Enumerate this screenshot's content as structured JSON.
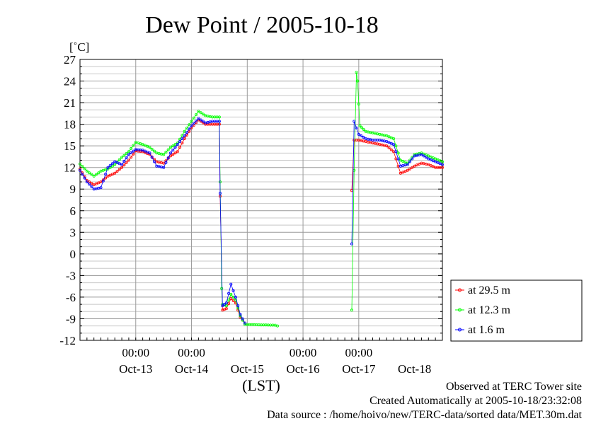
{
  "chart_data": {
    "type": "line",
    "title": "Dew Point / 2005-10-18",
    "ylabel": "[˚C]",
    "xlabel": "(LST)",
    "ylim": [
      -12,
      27
    ],
    "yticks": [
      27,
      24,
      21,
      18,
      15,
      12,
      9,
      6,
      3,
      0,
      -3,
      -6,
      -9,
      -12
    ],
    "x_range_days": [
      "2005-10-12T12:00",
      "2005-10-19T00:00"
    ],
    "time_tick_labels": [
      {
        "at": "2005-10-13T12:00",
        "label": "00:00"
      },
      {
        "at": "2005-10-14T12:00",
        "label": "00:00"
      },
      {
        "at": "2005-10-16T12:00",
        "label": "00:00"
      },
      {
        "at": "2005-10-17T12:00",
        "label": "00:00"
      }
    ],
    "date_tick_labels": [
      {
        "at": "2005-10-13T12:00",
        "label": "Oct-13"
      },
      {
        "at": "2005-10-14T12:00",
        "label": "Oct-14"
      },
      {
        "at": "2005-10-15T12:00",
        "label": "Oct-15"
      },
      {
        "at": "2005-10-16T12:00",
        "label": "Oct-16"
      },
      {
        "at": "2005-10-17T12:00",
        "label": "Oct-17"
      },
      {
        "at": "2005-10-18T12:00",
        "label": "Oct-18"
      }
    ],
    "grid": true,
    "legend_position": "right",
    "series": [
      {
        "name": "at 29.5 m",
        "color": "#ff0000",
        "points": [
          [
            "2005-10-12T12:00",
            11.8
          ],
          [
            "2005-10-12T15:00",
            10.2
          ],
          [
            "2005-10-12T18:00",
            9.6
          ],
          [
            "2005-10-12T21:00",
            10.0
          ],
          [
            "2005-10-13T00:00",
            10.8
          ],
          [
            "2005-10-13T03:00",
            11.2
          ],
          [
            "2005-10-13T06:00",
            12.0
          ],
          [
            "2005-10-13T09:00",
            13.0
          ],
          [
            "2005-10-13T12:00",
            14.3
          ],
          [
            "2005-10-13T15:00",
            14.2
          ],
          [
            "2005-10-13T18:00",
            13.8
          ],
          [
            "2005-10-13T21:00",
            12.8
          ],
          [
            "2005-10-14T00:00",
            12.6
          ],
          [
            "2005-10-14T03:00",
            13.6
          ],
          [
            "2005-10-14T06:00",
            14.2
          ],
          [
            "2005-10-14T09:00",
            16.0
          ],
          [
            "2005-10-14T12:00",
            17.5
          ],
          [
            "2005-10-14T15:00",
            18.6
          ],
          [
            "2005-10-14T18:00",
            18.0
          ],
          [
            "2005-10-14T21:00",
            18.0
          ],
          [
            "2005-10-15T00:00",
            18.0
          ],
          [
            "2005-10-15T00:20",
            8.0
          ],
          [
            "2005-10-15T01:20",
            -7.8
          ],
          [
            "2005-10-15T03:00",
            -7.6
          ],
          [
            "2005-10-15T05:00",
            -6.2
          ],
          [
            "2005-10-15T07:00",
            -6.8
          ],
          [
            "2005-10-15T09:00",
            -8.8
          ],
          [
            "2005-10-15T11:00",
            -9.6
          ]
        ],
        "points_b": [
          [
            "2005-10-17T09:00",
            8.8
          ],
          [
            "2005-10-17T10:00",
            15.8
          ],
          [
            "2005-10-17T12:00",
            15.8
          ],
          [
            "2005-10-17T15:00",
            15.6
          ],
          [
            "2005-10-17T18:00",
            15.4
          ],
          [
            "2005-10-17T21:00",
            15.2
          ],
          [
            "2005-10-18T00:00",
            15.0
          ],
          [
            "2005-10-18T03:00",
            14.2
          ],
          [
            "2005-10-18T06:00",
            11.2
          ],
          [
            "2005-10-18T09:00",
            11.6
          ],
          [
            "2005-10-18T12:00",
            12.2
          ],
          [
            "2005-10-18T15:00",
            12.6
          ],
          [
            "2005-10-18T18:00",
            12.4
          ],
          [
            "2005-10-18T21:00",
            12.0
          ],
          [
            "2005-10-19T00:00",
            12.0
          ]
        ]
      },
      {
        "name": "at 12.3 m",
        "color": "#00ff00",
        "points": [
          [
            "2005-10-12T12:00",
            12.5
          ],
          [
            "2005-10-12T15:00",
            11.5
          ],
          [
            "2005-10-12T18:00",
            10.8
          ],
          [
            "2005-10-12T21:00",
            11.5
          ],
          [
            "2005-10-13T00:00",
            11.8
          ],
          [
            "2005-10-13T03:00",
            12.4
          ],
          [
            "2005-10-13T06:00",
            13.4
          ],
          [
            "2005-10-13T09:00",
            14.2
          ],
          [
            "2005-10-13T12:00",
            15.5
          ],
          [
            "2005-10-13T15:00",
            15.2
          ],
          [
            "2005-10-13T18:00",
            14.8
          ],
          [
            "2005-10-13T21:00",
            14.0
          ],
          [
            "2005-10-14T00:00",
            13.8
          ],
          [
            "2005-10-14T03:00",
            14.8
          ],
          [
            "2005-10-14T06:00",
            15.4
          ],
          [
            "2005-10-14T09:00",
            17.0
          ],
          [
            "2005-10-14T12:00",
            18.4
          ],
          [
            "2005-10-14T15:00",
            19.8
          ],
          [
            "2005-10-14T18:00",
            19.2
          ],
          [
            "2005-10-14T21:00",
            19.0
          ],
          [
            "2005-10-15T00:00",
            19.0
          ],
          [
            "2005-10-15T00:20",
            10.0
          ],
          [
            "2005-10-15T01:00",
            -4.8
          ],
          [
            "2005-10-15T01:20",
            -7.0
          ],
          [
            "2005-10-15T03:00",
            -7.2
          ],
          [
            "2005-10-15T05:00",
            -5.6
          ],
          [
            "2005-10-15T07:00",
            -6.4
          ],
          [
            "2005-10-15T09:00",
            -8.6
          ],
          [
            "2005-10-15T11:00",
            -9.8
          ],
          [
            "2005-10-16T00:00",
            -9.9
          ],
          [
            "2005-10-16T01:00",
            -10.0
          ]
        ],
        "points_b": [
          [
            "2005-10-17T09:00",
            -7.8
          ],
          [
            "2005-10-17T10:00",
            11.6
          ],
          [
            "2005-10-17T11:00",
            25.2
          ],
          [
            "2005-10-17T11:30",
            24.0
          ],
          [
            "2005-10-17T12:00",
            20.8
          ],
          [
            "2005-10-17T12:30",
            17.8
          ],
          [
            "2005-10-17T15:00",
            17.0
          ],
          [
            "2005-10-17T18:00",
            16.8
          ],
          [
            "2005-10-17T21:00",
            16.6
          ],
          [
            "2005-10-18T00:00",
            16.4
          ],
          [
            "2005-10-18T03:00",
            16.0
          ],
          [
            "2005-10-18T06:00",
            13.0
          ],
          [
            "2005-10-18T09:00",
            12.6
          ],
          [
            "2005-10-18T12:00",
            13.8
          ],
          [
            "2005-10-18T15:00",
            14.0
          ],
          [
            "2005-10-18T18:00",
            13.6
          ],
          [
            "2005-10-18T21:00",
            13.2
          ],
          [
            "2005-10-19T00:00",
            12.8
          ]
        ]
      },
      {
        "name": "at 1.6 m",
        "color": "#0000ff",
        "points": [
          [
            "2005-10-12T12:00",
            11.6
          ],
          [
            "2005-10-12T15:00",
            10.0
          ],
          [
            "2005-10-12T18:00",
            9.0
          ],
          [
            "2005-10-12T21:00",
            9.2
          ],
          [
            "2005-10-13T00:00",
            12.0
          ],
          [
            "2005-10-13T03:00",
            12.8
          ],
          [
            "2005-10-13T06:00",
            12.4
          ],
          [
            "2005-10-13T09:00",
            13.8
          ],
          [
            "2005-10-13T12:00",
            14.5
          ],
          [
            "2005-10-13T15:00",
            14.4
          ],
          [
            "2005-10-13T18:00",
            14.0
          ],
          [
            "2005-10-13T21:00",
            12.2
          ],
          [
            "2005-10-14T00:00",
            12.0
          ],
          [
            "2005-10-14T03:00",
            14.0
          ],
          [
            "2005-10-14T06:00",
            15.2
          ],
          [
            "2005-10-14T09:00",
            16.4
          ],
          [
            "2005-10-14T12:00",
            17.8
          ],
          [
            "2005-10-14T15:00",
            18.8
          ],
          [
            "2005-10-14T18:00",
            18.2
          ],
          [
            "2005-10-14T21:00",
            18.4
          ],
          [
            "2005-10-15T00:00",
            18.4
          ],
          [
            "2005-10-15T00:20",
            8.4
          ],
          [
            "2005-10-15T01:20",
            -7.2
          ],
          [
            "2005-10-15T03:00",
            -6.8
          ],
          [
            "2005-10-15T05:00",
            -4.2
          ],
          [
            "2005-10-15T07:00",
            -6.0
          ],
          [
            "2005-10-15T09:00",
            -8.4
          ],
          [
            "2005-10-15T11:00",
            -9.6
          ]
        ],
        "points_b": [
          [
            "2005-10-17T09:00",
            1.4
          ],
          [
            "2005-10-17T10:00",
            18.4
          ],
          [
            "2005-10-17T12:00",
            16.6
          ],
          [
            "2005-10-17T15:00",
            16.0
          ],
          [
            "2005-10-17T18:00",
            15.8
          ],
          [
            "2005-10-17T21:00",
            15.8
          ],
          [
            "2005-10-18T00:00",
            15.6
          ],
          [
            "2005-10-18T03:00",
            15.2
          ],
          [
            "2005-10-18T06:00",
            12.2
          ],
          [
            "2005-10-18T09:00",
            12.4
          ],
          [
            "2005-10-18T12:00",
            13.6
          ],
          [
            "2005-10-18T15:00",
            13.8
          ],
          [
            "2005-10-18T18:00",
            13.2
          ],
          [
            "2005-10-18T21:00",
            12.8
          ],
          [
            "2005-10-19T00:00",
            12.4
          ]
        ]
      }
    ]
  },
  "footer": {
    "observed": "Observed at TERC Tower site",
    "created": "Created Automatically at 2005-10-18/23:32:08",
    "source": "Data source : /home/hoivo/new/TERC-data/sorted  data/MET.30m.dat"
  }
}
